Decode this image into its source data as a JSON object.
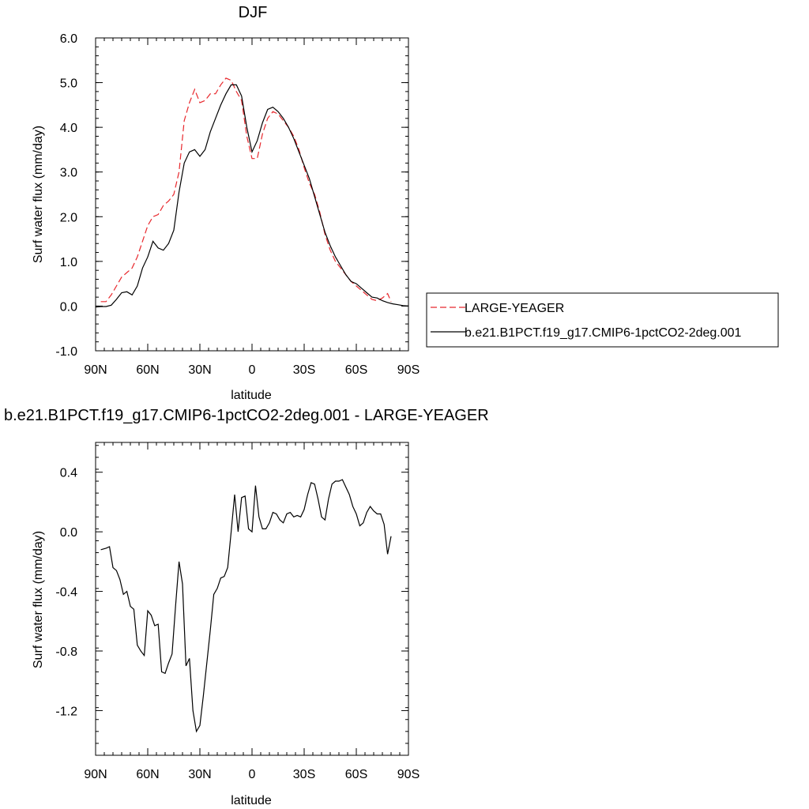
{
  "chart_data": [
    {
      "type": "line",
      "title": "DJF",
      "xlabel": "latitude",
      "ylabel": "Surf water flux (mm/day)",
      "xlim": [
        90,
        -90
      ],
      "ylim": [
        -1.0,
        6.0
      ],
      "xticks": [
        90,
        60,
        30,
        0,
        -30,
        -60,
        -90
      ],
      "xtick_labels": [
        "90N",
        "60N",
        "30N",
        "0",
        "30S",
        "60S",
        "90S"
      ],
      "yticks": [
        -1.0,
        0.0,
        1.0,
        2.0,
        3.0,
        4.0,
        5.0,
        6.0
      ],
      "ytick_labels": [
        "-1.0",
        "0.0",
        "1.0",
        "2.0",
        "3.0",
        "4.0",
        "5.0",
        "6.0"
      ],
      "legend_position": "right",
      "series": [
        {
          "name": "LARGE-YEAGER",
          "color": "#e8282d",
          "dash": "dashed",
          "x": [
            87,
            84,
            81,
            78,
            75,
            72,
            69,
            66,
            63,
            60,
            57,
            54,
            51,
            48,
            45,
            42,
            39,
            36,
            33,
            30,
            27,
            24,
            21,
            18,
            15,
            12,
            9,
            6,
            3,
            0,
            -3,
            -6,
            -9,
            -12,
            -15,
            -18,
            -21,
            -24,
            -27,
            -30,
            -33,
            -36,
            -39,
            -42,
            -45,
            -48,
            -51,
            -54,
            -57,
            -60,
            -63,
            -66,
            -69,
            -72,
            -75,
            -78,
            -80
          ],
          "y": [
            0.1,
            0.1,
            0.25,
            0.45,
            0.65,
            0.75,
            0.85,
            1.1,
            1.45,
            1.8,
            2.0,
            2.05,
            2.25,
            2.35,
            2.5,
            3.0,
            4.15,
            4.55,
            4.85,
            4.55,
            4.6,
            4.75,
            4.75,
            4.95,
            5.1,
            5.05,
            4.8,
            4.6,
            3.8,
            3.3,
            3.3,
            3.85,
            4.2,
            4.35,
            4.3,
            4.15,
            4.0,
            3.8,
            3.5,
            3.1,
            2.75,
            2.5,
            2.1,
            1.6,
            1.25,
            1.0,
            0.85,
            0.7,
            0.55,
            0.45,
            0.35,
            0.25,
            0.15,
            0.12,
            0.18,
            0.28,
            0.1
          ]
        },
        {
          "name": "b.e21.B1PCT.f19_g17.CMIP6-1pctCO2-2deg.001",
          "color": "#000000",
          "dash": "solid",
          "x": [
            90,
            87,
            84,
            81,
            78,
            75,
            72,
            69,
            66,
            63,
            60,
            57,
            54,
            51,
            48,
            45,
            42,
            39,
            36,
            33,
            30,
            27,
            24,
            21,
            18,
            15,
            12,
            9,
            6,
            3,
            0,
            -3,
            -6,
            -9,
            -12,
            -15,
            -18,
            -21,
            -24,
            -27,
            -30,
            -33,
            -36,
            -39,
            -42,
            -45,
            -48,
            -51,
            -54,
            -57,
            -60,
            -63,
            -66,
            -69,
            -72,
            -75,
            -78,
            -81,
            -84,
            -87,
            -90
          ],
          "y": [
            -0.02,
            -0.01,
            -0.01,
            0.02,
            0.15,
            0.3,
            0.32,
            0.25,
            0.45,
            0.85,
            1.1,
            1.45,
            1.3,
            1.25,
            1.4,
            1.7,
            2.55,
            3.2,
            3.45,
            3.5,
            3.35,
            3.5,
            3.9,
            4.2,
            4.5,
            4.75,
            4.95,
            4.95,
            4.7,
            4.0,
            3.45,
            3.7,
            4.1,
            4.4,
            4.45,
            4.35,
            4.2,
            4.0,
            3.75,
            3.45,
            3.15,
            2.85,
            2.45,
            2.05,
            1.65,
            1.35,
            1.1,
            0.9,
            0.7,
            0.55,
            0.5,
            0.4,
            0.3,
            0.2,
            0.18,
            0.12,
            0.08,
            0.05,
            0.03,
            0.01,
            0.0
          ]
        }
      ]
    },
    {
      "type": "line",
      "title": "b.e21.B1PCT.f19_g17.CMIP6-1pctCO2-2deg.001 - LARGE-YEAGER",
      "xlabel": "latitude",
      "ylabel": "Surf water flux (mm/day)",
      "xlim": [
        90,
        -90
      ],
      "ylim": [
        -1.5,
        0.6
      ],
      "xticks": [
        90,
        60,
        30,
        0,
        -30,
        -60,
        -90
      ],
      "xtick_labels": [
        "90N",
        "60N",
        "30N",
        "0",
        "30S",
        "60S",
        "90S"
      ],
      "yticks": [
        -1.2,
        -0.8,
        -0.4,
        0.0,
        0.4
      ],
      "ytick_labels": [
        "-1.2",
        "-0.8",
        "-0.4",
        "0.0",
        "0.4"
      ],
      "series": [
        {
          "color": "#000000",
          "dash": "solid",
          "x": [
            87,
            84,
            82,
            80,
            78,
            76,
            74,
            72,
            70,
            68,
            66,
            64,
            62,
            60,
            58,
            56,
            54,
            52,
            50,
            48,
            46,
            44,
            42,
            40,
            38,
            36,
            34,
            32,
            30,
            28,
            26,
            24,
            22,
            20,
            18,
            16,
            14,
            12,
            10,
            8,
            6,
            4,
            2,
            0,
            -2,
            -4,
            -6,
            -8,
            -10,
            -12,
            -14,
            -16,
            -18,
            -20,
            -22,
            -24,
            -26,
            -28,
            -30,
            -32,
            -34,
            -36,
            -38,
            -40,
            -42,
            -44,
            -46,
            -48,
            -50,
            -52,
            -54,
            -56,
            -58,
            -60,
            -62,
            -64,
            -66,
            -68,
            -70,
            -72,
            -74,
            -76,
            -78,
            -80
          ],
          "y": [
            -0.12,
            -0.11,
            -0.1,
            -0.24,
            -0.26,
            -0.32,
            -0.42,
            -0.4,
            -0.5,
            -0.52,
            -0.76,
            -0.8,
            -0.83,
            -0.53,
            -0.56,
            -0.63,
            -0.62,
            -0.94,
            -0.95,
            -0.88,
            -0.82,
            -0.5,
            -0.2,
            -0.35,
            -0.9,
            -0.85,
            -1.2,
            -1.34,
            -1.3,
            -1.1,
            -0.88,
            -0.66,
            -0.42,
            -0.38,
            -0.31,
            -0.3,
            -0.24,
            0.0,
            0.25,
            0.0,
            0.23,
            0.24,
            0.02,
            0.0,
            0.31,
            0.1,
            0.02,
            0.02,
            0.06,
            0.13,
            0.12,
            0.08,
            0.06,
            0.12,
            0.13,
            0.1,
            0.11,
            0.1,
            0.15,
            0.25,
            0.33,
            0.32,
            0.22,
            0.1,
            0.08,
            0.22,
            0.32,
            0.34,
            0.34,
            0.35,
            0.3,
            0.25,
            0.17,
            0.12,
            0.04,
            0.06,
            0.13,
            0.17,
            0.14,
            0.12,
            0.12,
            0.05,
            -0.15,
            -0.03
          ]
        }
      ]
    }
  ]
}
